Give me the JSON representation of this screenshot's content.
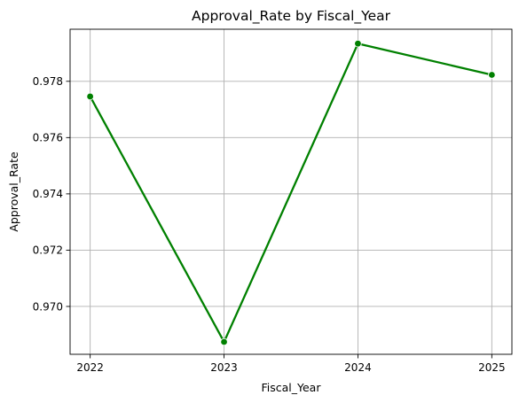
{
  "chart_data": {
    "type": "line",
    "title": "Approval_Rate by Fiscal_Year",
    "xlabel": "Fiscal_Year",
    "ylabel": "Approval_Rate",
    "x": [
      "2022",
      "2023",
      "2024",
      "2025"
    ],
    "series": [
      {
        "values": [
          0.97746,
          0.96874,
          0.97934,
          0.97823
        ],
        "color": "#008000",
        "marker": "circle"
      }
    ],
    "ylim": [
      0.9683,
      0.97985
    ],
    "yticks": [
      0.97,
      0.972,
      0.974,
      0.976,
      0.978
    ],
    "ytick_labels": [
      "0.970",
      "0.972",
      "0.974",
      "0.976",
      "0.978"
    ],
    "grid": true,
    "legend": false
  }
}
